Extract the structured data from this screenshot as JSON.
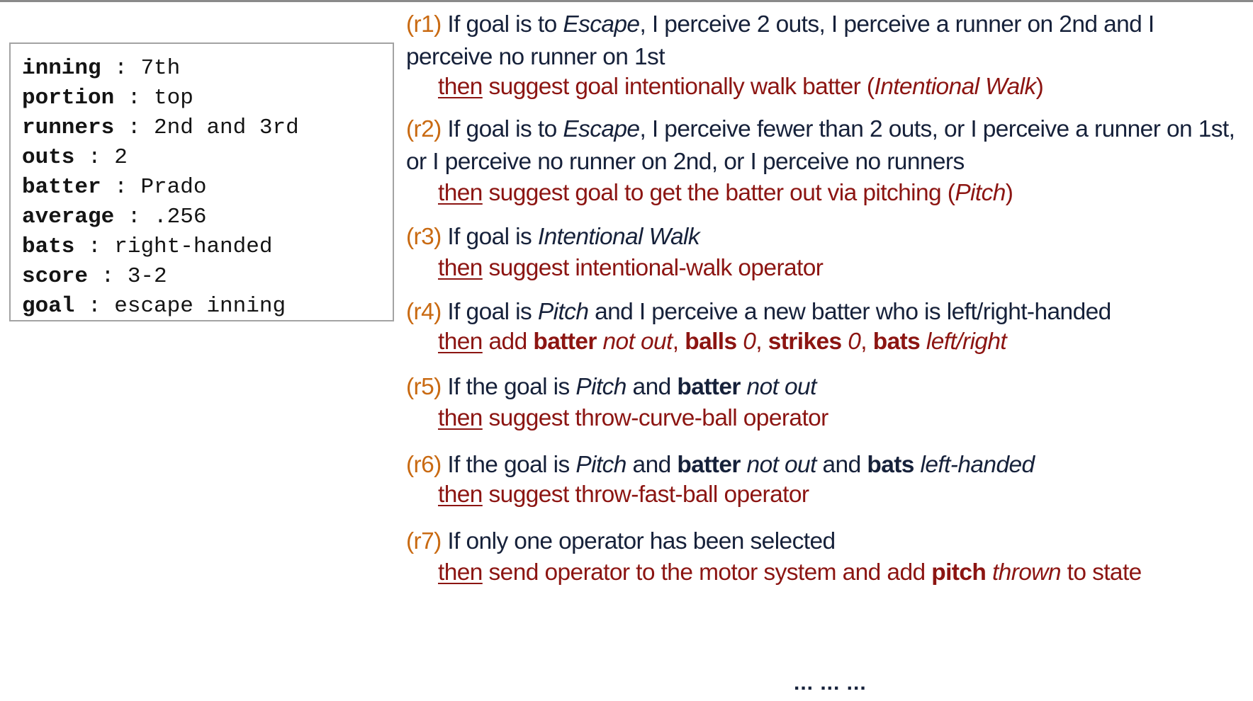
{
  "state": [
    {
      "key": "inning",
      "value": "7th"
    },
    {
      "key": "portion",
      "value": "top"
    },
    {
      "key": "runners",
      "value": "2nd and 3rd"
    },
    {
      "key": "outs",
      "value": "2"
    },
    {
      "key": "batter",
      "value": "Prado"
    },
    {
      "key": "average",
      "value": ".256"
    },
    {
      "key": "bats",
      "value": "right-handed"
    },
    {
      "key": "score",
      "value": "3-2"
    },
    {
      "key": "goal",
      "value": "escape inning"
    }
  ],
  "state_separator": " : ",
  "then_word": "then",
  "rules": {
    "r1": {
      "id": "(r1)",
      "if_1": " If goal is to ",
      "if_2": "Escape",
      "if_3": ", I perceive 2 outs, I perceive a runner on 2nd and I",
      "if_4": "perceive no runner on 1st",
      "then_1": " suggest goal intentionally walk batter (",
      "then_2": "Intentional Walk",
      "then_3": ")"
    },
    "r2": {
      "id": "(r2)",
      "if_1": " If goal is to ",
      "if_2": "Escape",
      "if_3": ", I perceive fewer than 2 outs, or I perceive a runner on 1st,",
      "if_4": "or I perceive no runner on 2nd, or I perceive no runners",
      "then_1": " suggest goal to get the batter out via pitching (",
      "then_2": "Pitch",
      "then_3": ")"
    },
    "r3": {
      "id": "(r3)",
      "if_1": " If goal is ",
      "if_2": "Intentional Walk",
      "then_1": " suggest intentional-walk operator"
    },
    "r4": {
      "id": "(r4)",
      "if_1": " If goal is ",
      "if_2": "Pitch",
      "if_3": " and I perceive a new batter who is left/right-handed",
      "then_1": " add ",
      "then_2": "batter",
      "then_3": " not out",
      "then_4": ", ",
      "then_5": "balls",
      "then_6": " 0",
      "then_7": ", ",
      "then_8": "strikes",
      "then_9": " 0",
      "then_10": ", ",
      "then_11": "bats",
      "then_12": " left/right"
    },
    "r5": {
      "id": "(r5)",
      "if_1": " If the goal is ",
      "if_2": "Pitch",
      "if_3": " and ",
      "if_4": "batter",
      "if_5": " not out",
      "then_1": " suggest throw-curve-ball operator"
    },
    "r6": {
      "id": "(r6)",
      "if_1": " If the goal is ",
      "if_2": "Pitch",
      "if_3": " and ",
      "if_4": "batter",
      "if_5": " not out",
      "if_6": " and ",
      "if_7": "bats",
      "if_8": " left-handed",
      "then_1": " suggest throw-fast-ball operator"
    },
    "r7": {
      "id": "(r7)",
      "if_1": " If only one operator has been selected",
      "then_1": " send operator to the motor system and add ",
      "then_2": "pitch",
      "then_3": " thrown",
      "then_4": " to state"
    }
  },
  "ellipsis": "... ... ...",
  "colors": {
    "rule_id": "#c96a12",
    "condition_text": "#16213a",
    "action_text": "#8c1512"
  }
}
